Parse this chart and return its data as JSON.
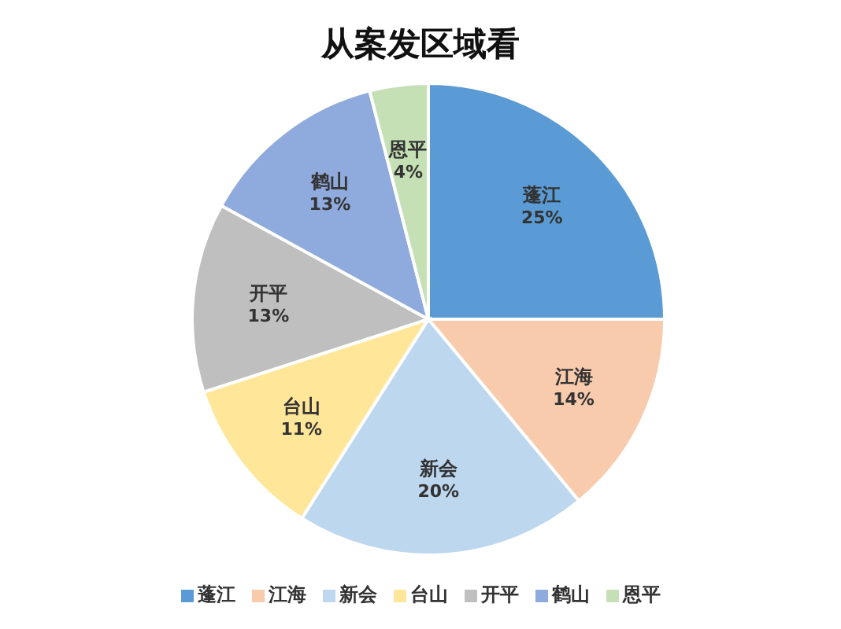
{
  "chart_data": {
    "type": "pie",
    "title": "从案发区域看",
    "categories": [
      "蓬江",
      "江海",
      "新会",
      "台山",
      "开平",
      "鹤山",
      "恩平"
    ],
    "values": [
      25,
      14,
      20,
      11,
      13,
      13,
      4
    ],
    "colors": [
      "#5b9bd5",
      "#f8cbad",
      "#bdd7ee",
      "#ffe699",
      "#bfbfbf",
      "#8faadc",
      "#c5e0b4"
    ],
    "value_labels": [
      "25%",
      "14%",
      "20%",
      "11%",
      "13%",
      "13%",
      "4%"
    ],
    "legend": "bottom"
  }
}
